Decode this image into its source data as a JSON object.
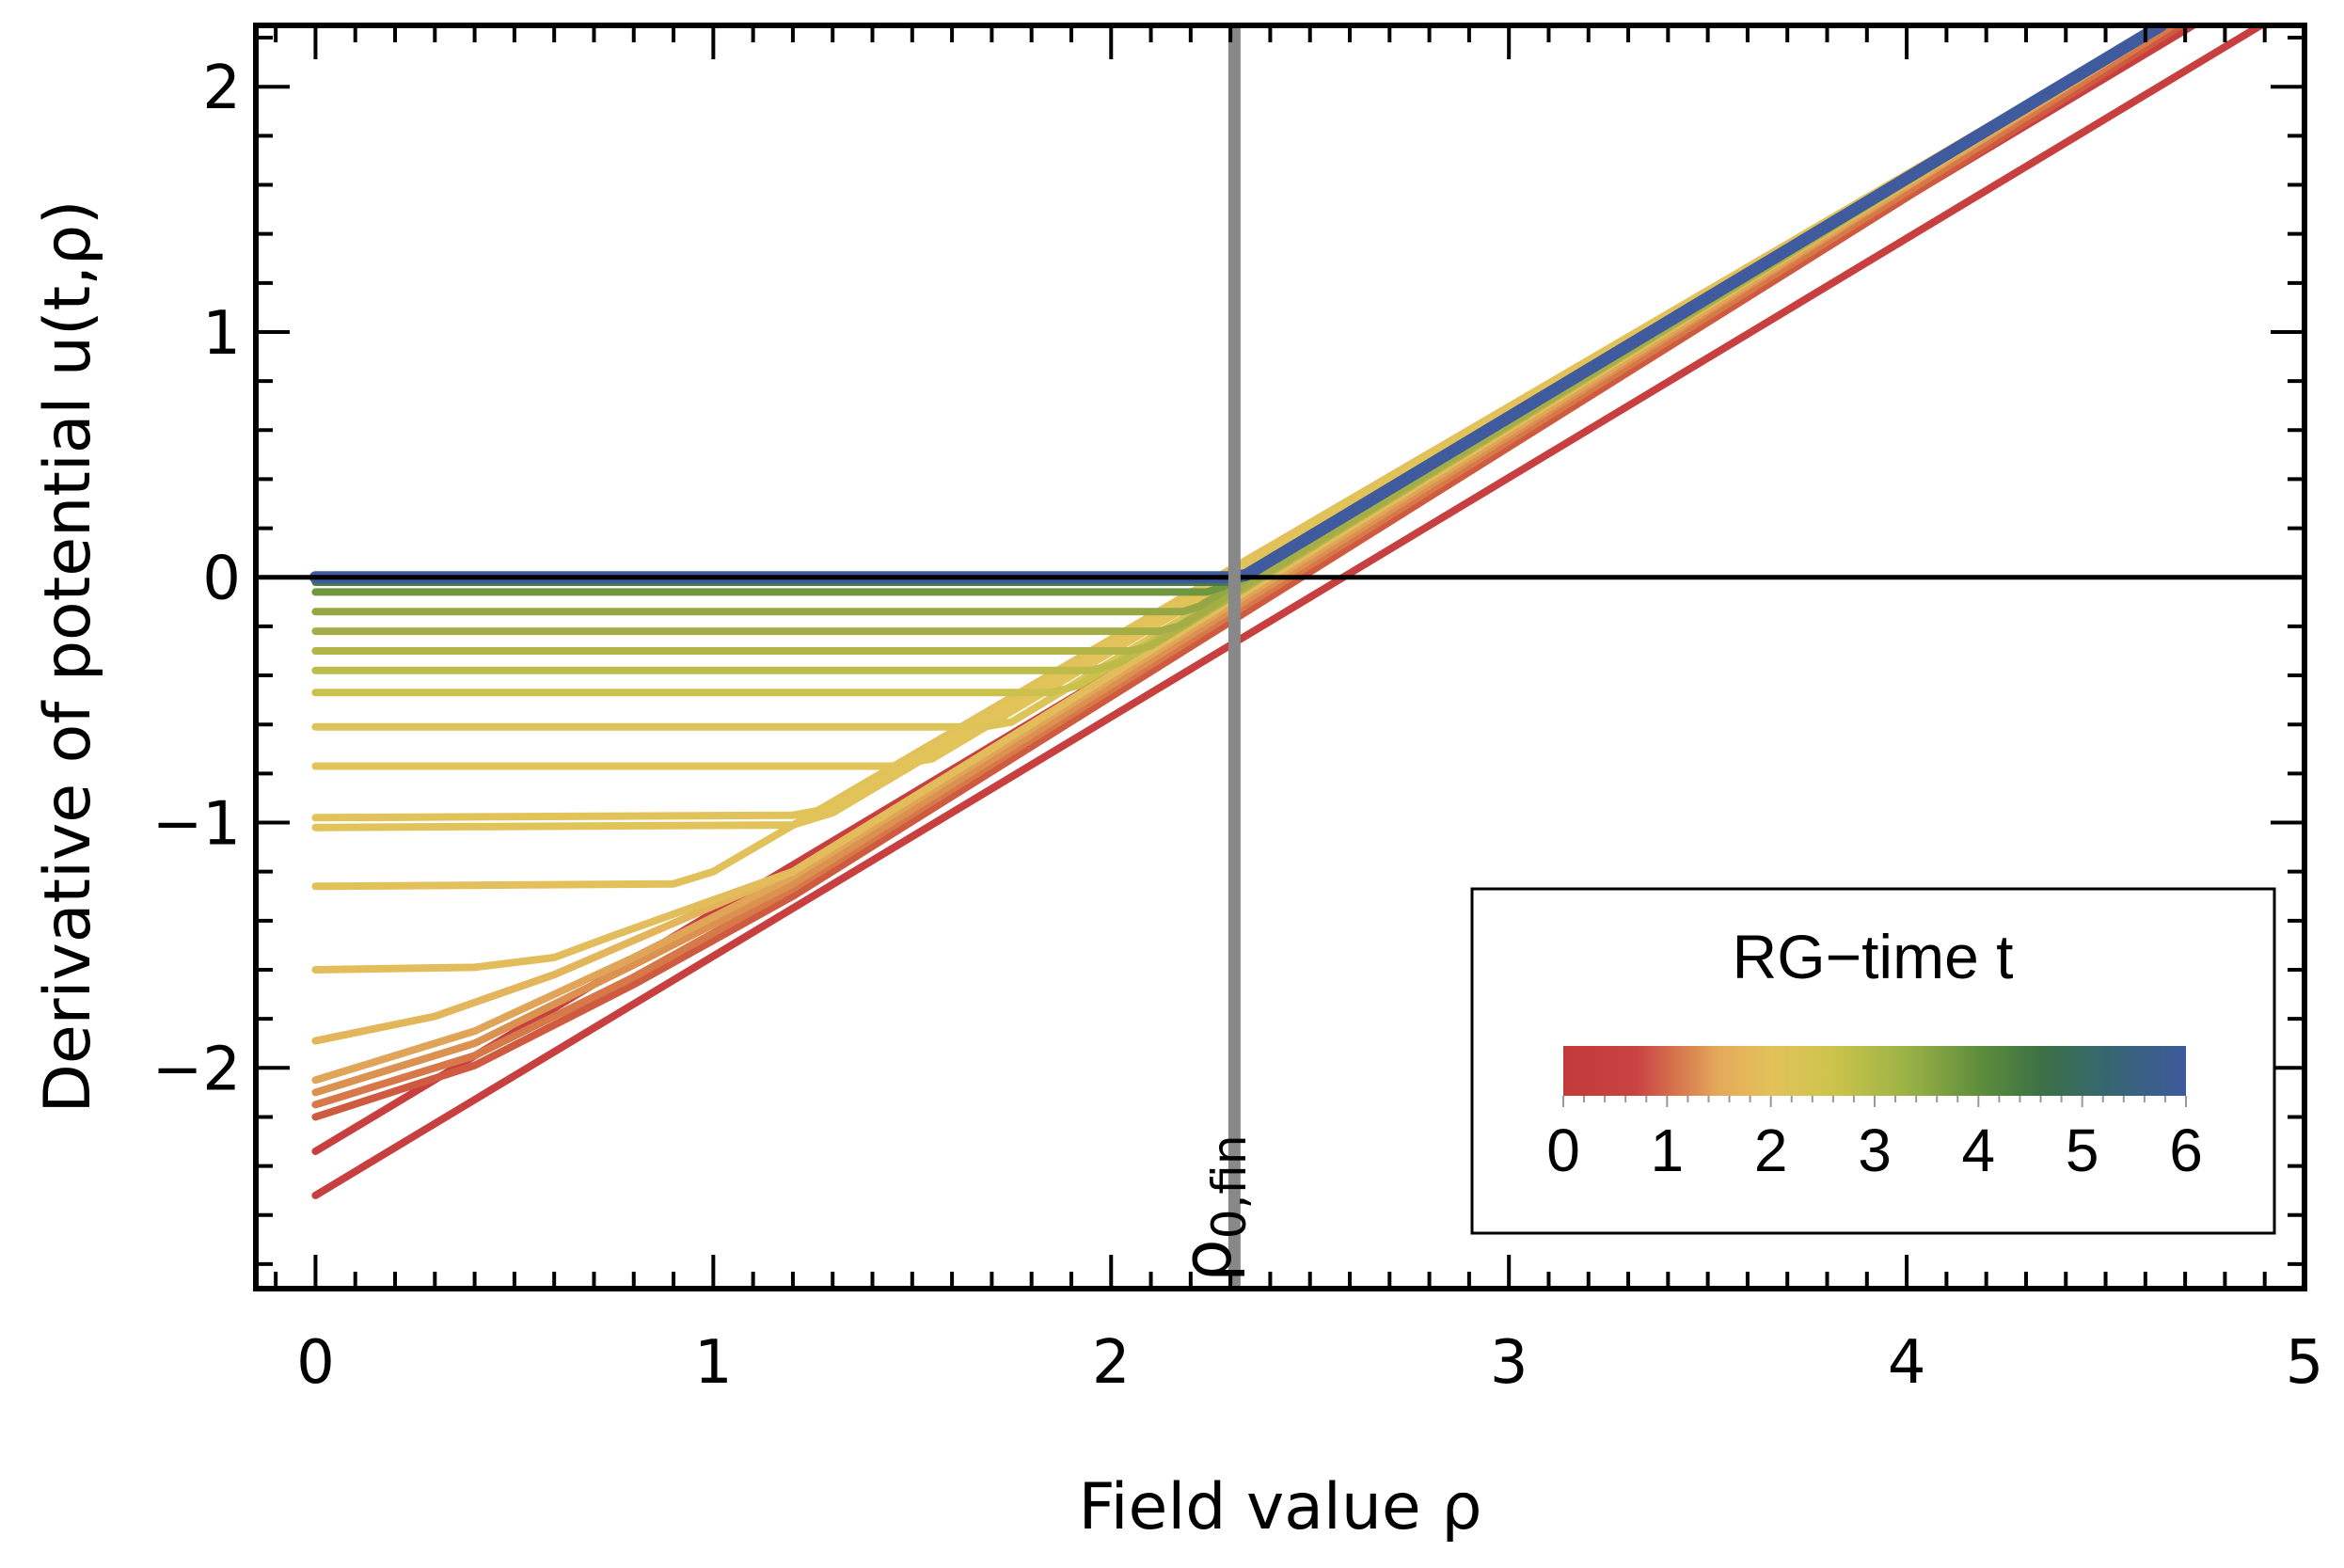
{
  "chart_data": {
    "type": "line",
    "xlabel": "Field value ρ",
    "ylabel": "Derivative of potential u(t,ρ)",
    "xlim": [
      -0.15,
      5
    ],
    "ylim": [
      -2.9,
      2.25
    ],
    "x_ticks": [
      0,
      1,
      2,
      3,
      4,
      5
    ],
    "x_tick_labels": [
      "0",
      "1",
      "2",
      "3",
      "4",
      "5"
    ],
    "y_ticks": [
      -2,
      -1,
      0,
      1,
      2
    ],
    "y_tick_labels": [
      "−2",
      "−1",
      "0",
      "1",
      "2"
    ],
    "grid": false,
    "zero_line": {
      "y": 0,
      "color": "#000000"
    },
    "vertical_line": {
      "x": 2.31,
      "label": "ρ",
      "label_sub": "0,fin",
      "color": "#888888"
    },
    "legend": {
      "title": "RG−time t",
      "placement": "bottom-right",
      "type": "colorbar",
      "range": [
        0,
        6
      ],
      "ticks": [
        "0",
        "1",
        "2",
        "3",
        "4",
        "5",
        "6"
      ],
      "color_stops": [
        {
          "t": 0,
          "color": "#C23A3A"
        },
        {
          "t": 0.7,
          "color": "#C94343"
        },
        {
          "t": 1.5,
          "color": "#E5A95A"
        },
        {
          "t": 2.0,
          "color": "#E2C25A"
        },
        {
          "t": 2.6,
          "color": "#CCC44C"
        },
        {
          "t": 3.3,
          "color": "#9BB346"
        },
        {
          "t": 4.0,
          "color": "#5F8E3C"
        },
        {
          "t": 4.6,
          "color": "#3C7145"
        },
        {
          "t": 5.2,
          "color": "#36676F"
        },
        {
          "t": 6.0,
          "color": "#3E5A9C"
        }
      ]
    },
    "series": [
      {
        "t": 0.0,
        "color": "#C83F3F",
        "points": [
          [
            0,
            -2.52
          ],
          [
            4.89,
            2.25
          ]
        ]
      },
      {
        "t": 0.3,
        "color": "#C83F3F",
        "points": [
          [
            0,
            -2.34
          ],
          [
            4.72,
            2.25
          ]
        ]
      },
      {
        "t": 0.55,
        "color": "#CE5A40",
        "points": [
          [
            0,
            -2.2
          ],
          [
            0.4,
            -1.99
          ],
          [
            0.8,
            -1.66
          ],
          [
            1.2,
            -1.3
          ],
          [
            4.69,
            2.25
          ]
        ]
      },
      {
        "t": 0.8,
        "color": "#D67848",
        "points": [
          [
            0,
            -2.15
          ],
          [
            0.4,
            -1.95
          ],
          [
            0.8,
            -1.63
          ],
          [
            1.2,
            -1.27
          ],
          [
            4.67,
            2.25
          ]
        ]
      },
      {
        "t": 1.1,
        "color": "#DB9150",
        "points": [
          [
            0,
            -2.1
          ],
          [
            0.4,
            -1.9
          ],
          [
            0.8,
            -1.58
          ],
          [
            1.2,
            -1.25
          ],
          [
            4.65,
            2.25
          ]
        ]
      },
      {
        "t": 1.4,
        "color": "#E0A558",
        "points": [
          [
            0,
            -2.05
          ],
          [
            0.4,
            -1.85
          ],
          [
            0.8,
            -1.55
          ],
          [
            1.2,
            -1.22
          ],
          [
            4.65,
            2.25
          ]
        ]
      },
      {
        "t": 1.6,
        "color": "#E3B65B",
        "points": [
          [
            0,
            -1.89
          ],
          [
            0.3,
            -1.79
          ],
          [
            0.6,
            -1.62
          ],
          [
            0.9,
            -1.41
          ],
          [
            1.2,
            -1.2
          ],
          [
            4.64,
            2.25
          ]
        ]
      },
      {
        "t": 1.8,
        "color": "#E3BD5B",
        "points": [
          [
            0,
            -1.6
          ],
          [
            0.4,
            -1.59
          ],
          [
            0.6,
            -1.55
          ],
          [
            0.75,
            -1.46
          ],
          [
            1.2,
            -1.2
          ],
          [
            4.64,
            2.25
          ]
        ]
      },
      {
        "t": 1.95,
        "color": "#E2C05A",
        "points": [
          [
            0,
            -1.26
          ],
          [
            0.9,
            -1.25
          ],
          [
            1.0,
            -1.2
          ],
          [
            4.64,
            2.25
          ]
        ]
      },
      {
        "t": 2.05,
        "color": "#E2C35A",
        "points": [
          [
            0,
            -1.02
          ],
          [
            1.2,
            -1.01
          ],
          [
            1.3,
            -0.96
          ],
          [
            4.64,
            2.25
          ]
        ]
      },
      {
        "t": 2.15,
        "color": "#E2C35A",
        "points": [
          [
            0,
            -0.98
          ],
          [
            1.2,
            -0.97
          ],
          [
            1.3,
            -0.94
          ],
          [
            4.64,
            2.25
          ]
        ]
      },
      {
        "t": 2.3,
        "color": "#E2C45A",
        "points": [
          [
            0,
            -0.77
          ],
          [
            1.45,
            -0.77
          ],
          [
            1.55,
            -0.74
          ],
          [
            4.64,
            2.25
          ]
        ]
      },
      {
        "t": 2.5,
        "color": "#DCC458",
        "points": [
          [
            0,
            -0.61
          ],
          [
            1.68,
            -0.61
          ],
          [
            1.75,
            -0.59
          ],
          [
            4.64,
            2.25
          ]
        ]
      },
      {
        "t": 2.8,
        "color": "#CBC24E",
        "points": [
          [
            0,
            -0.47
          ],
          [
            1.85,
            -0.47
          ],
          [
            1.92,
            -0.44
          ],
          [
            4.64,
            2.25
          ]
        ]
      },
      {
        "t": 3.0,
        "color": "#BDBB4A",
        "points": [
          [
            0,
            -0.38
          ],
          [
            1.95,
            -0.38
          ],
          [
            2.02,
            -0.35
          ],
          [
            4.64,
            2.25
          ]
        ]
      },
      {
        "t": 3.2,
        "color": "#B2B448",
        "points": [
          [
            0,
            -0.3
          ],
          [
            2.05,
            -0.3
          ],
          [
            2.1,
            -0.28
          ],
          [
            4.64,
            2.25
          ]
        ]
      },
      {
        "t": 3.5,
        "color": "#A5AE46",
        "points": [
          [
            0,
            -0.22
          ],
          [
            2.12,
            -0.22
          ],
          [
            2.17,
            -0.2
          ],
          [
            4.64,
            2.25
          ]
        ]
      },
      {
        "t": 3.8,
        "color": "#94A744",
        "points": [
          [
            0,
            -0.14
          ],
          [
            2.18,
            -0.14
          ],
          [
            2.22,
            -0.12
          ],
          [
            4.64,
            2.25
          ]
        ]
      },
      {
        "t": 4.2,
        "color": "#6F973F",
        "points": [
          [
            0,
            -0.06
          ],
          [
            2.24,
            -0.06
          ],
          [
            2.28,
            -0.04
          ],
          [
            4.64,
            2.25
          ]
        ]
      },
      {
        "t": 5.0,
        "color": "#4A7C4B",
        "points": [
          [
            0,
            -0.02
          ],
          [
            2.3,
            -0.02
          ],
          [
            2.33,
            0
          ],
          [
            4.64,
            2.25
          ]
        ]
      },
      {
        "t": 6.0,
        "color": "#3F5B9D",
        "points": [
          [
            0,
            0
          ],
          [
            2.31,
            0
          ],
          [
            2.34,
            0.01
          ],
          [
            4.64,
            2.25
          ]
        ]
      }
    ]
  }
}
